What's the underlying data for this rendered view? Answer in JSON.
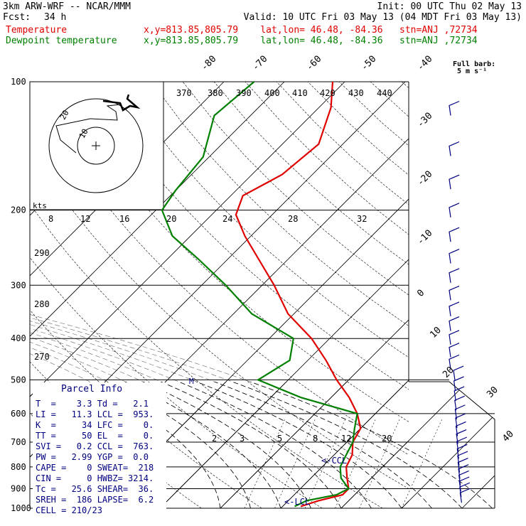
{
  "header": {
    "model": "3km ARW-WRF -- NCAR/MMM",
    "init": "Init: 00 UTC Thu 02 May 13",
    "fcst_label": "Fcst:",
    "fcst_value": "34 h",
    "valid": "Valid: 10 UTC Fri 03 May 13 (04 MDT Fri 03 May 13)",
    "temp_label": "Temperature",
    "temp_loc": "x,y=813.85,805.79    lat,lon= 46.48, -84.36   stn=ANJ ,72734",
    "dew_label": "Dewpoint temperature",
    "dew_loc": "x,y=813.85,805.79    lat,lon= 46.48, -84.36   stn=ANJ ,72734"
  },
  "barb_legend": {
    "title": "Full barb:",
    "value": "5 m s⁻¹"
  },
  "hodograph": {
    "kts_label": "kts",
    "ring_labels": [
      "8",
      "12",
      "16",
      "20",
      "24",
      "28",
      "32"
    ],
    "circle_labels": [
      "10",
      "20"
    ]
  },
  "parcel_info": {
    "title": "Parcel Info",
    "rows": [
      "T  =    3.3 Td =   2.1",
      "LI =   11.3 LCL =  953.",
      "K  =     34 LFC =    0.",
      "TT =     50 EL  =    0.",
      "SVI =   0.2 CCL =  763.",
      "PW =   2.99 YGP =  0.0",
      "CAPE =    0 SWEAT=  218",
      "CIN =     0 HWBZ= 3214.",
      "Tc =   25.6 SHEAR=  36.",
      "SREH =  186 LAPSE=  6.2",
      "CELL = 210/23"
    ]
  },
  "chart_data": {
    "type": "line",
    "title": "",
    "pressure_levels": [
      100,
      200,
      300,
      400,
      500,
      600,
      700,
      800,
      900,
      1000
    ],
    "isotherm_labels": [
      -80,
      -70,
      -60,
      -50,
      -40,
      -30,
      -20,
      -10,
      0,
      10,
      20,
      30,
      40
    ],
    "theta_labels": [
      370,
      380,
      390,
      400,
      410,
      420,
      430,
      440
    ],
    "theta_axis_labels": [
      290,
      280,
      270
    ],
    "mixing_ratio_labels": [
      2,
      3,
      5,
      8,
      12,
      20
    ],
    "annotations": [
      "M",
      "<-CCL",
      "<-LCL"
    ],
    "series": [
      {
        "name": "Temperature",
        "color": "#e00000",
        "points": [
          [
            100,
            -62
          ],
          [
            115,
            -58
          ],
          [
            140,
            -54
          ],
          [
            165,
            -55
          ],
          [
            185,
            -58
          ],
          [
            205,
            -56
          ],
          [
            230,
            -51
          ],
          [
            260,
            -45
          ],
          [
            300,
            -38
          ],
          [
            350,
            -31
          ],
          [
            400,
            -23
          ],
          [
            450,
            -17
          ],
          [
            500,
            -12
          ],
          [
            550,
            -7
          ],
          [
            600,
            -3
          ],
          [
            650,
            0
          ],
          [
            700,
            1
          ],
          [
            750,
            3
          ],
          [
            800,
            4
          ],
          [
            850,
            6
          ],
          [
            900,
            8
          ],
          [
            930,
            8
          ],
          [
            960,
            5
          ],
          [
            990,
            3
          ]
        ]
      },
      {
        "name": "Dewpoint temperature",
        "color": "#008000",
        "points": [
          [
            100,
            -75
          ],
          [
            120,
            -76
          ],
          [
            150,
            -71
          ],
          [
            180,
            -70
          ],
          [
            200,
            -69
          ],
          [
            230,
            -63
          ],
          [
            260,
            -55
          ],
          [
            300,
            -46
          ],
          [
            350,
            -37
          ],
          [
            400,
            -26
          ],
          [
            450,
            -23
          ],
          [
            500,
            -25
          ],
          [
            550,
            -15
          ],
          [
            600,
            -3
          ],
          [
            650,
            -1
          ],
          [
            700,
            1
          ],
          [
            750,
            2
          ],
          [
            800,
            3
          ],
          [
            850,
            5
          ],
          [
            900,
            8
          ],
          [
            930,
            7
          ],
          [
            960,
            3
          ],
          [
            990,
            2
          ]
        ]
      }
    ],
    "wind_barbs": [
      "",
      "",
      "",
      "",
      "",
      "",
      "",
      "",
      "",
      "",
      "",
      "",
      "",
      "",
      "",
      "",
      "",
      "",
      "",
      "",
      "",
      "",
      "",
      "",
      "",
      "",
      "",
      "",
      "",
      ""
    ]
  }
}
